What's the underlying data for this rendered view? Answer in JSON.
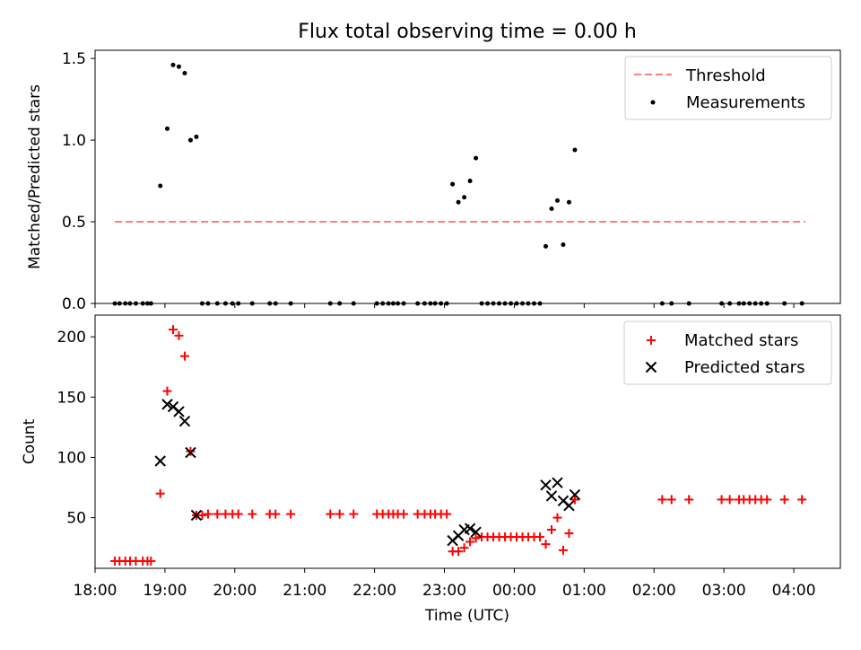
{
  "figure_title": "Flux total observing time = 0.00 h",
  "xlabel": "Time (UTC)",
  "x_tick_labels": [
    "18:00",
    "19:00",
    "20:00",
    "21:00",
    "22:00",
    "23:00",
    "00:00",
    "01:00",
    "02:00",
    "03:00",
    "04:00"
  ],
  "chart_data": [
    {
      "type": "scatter",
      "ylabel": "Matched/Predicted stars",
      "xlabel": "",
      "xlim": [
        "18:00",
        "04:40"
      ],
      "ylim": [
        0,
        1.55
      ],
      "y_ticks": [
        0,
        0.5,
        1.0,
        1.5
      ],
      "y_tick_labels": [
        "0.0",
        "0.5",
        "1.0",
        "1.5"
      ],
      "legend_position": "top-right",
      "grid": false,
      "threshold": {
        "name": "Threshold",
        "y": 0.5,
        "x_start": "18:17",
        "x_end": "04:10",
        "color": "#ff7f7f"
      },
      "series": [
        {
          "name": "Measurements",
          "color": "#000000",
          "marker": "dot",
          "points": [
            [
              "18:17",
              0
            ],
            [
              "18:21",
              0
            ],
            [
              "18:26",
              0
            ],
            [
              "18:30",
              0
            ],
            [
              "18:35",
              0
            ],
            [
              "18:41",
              0
            ],
            [
              "18:45",
              0
            ],
            [
              "18:48",
              0
            ],
            [
              "18:56",
              0.72
            ],
            [
              "19:02",
              1.07
            ],
            [
              "19:07",
              1.46
            ],
            [
              "19:12",
              1.45
            ],
            [
              "19:17",
              1.41
            ],
            [
              "19:22",
              1.0
            ],
            [
              "19:27",
              1.02
            ],
            [
              "19:32",
              0
            ],
            [
              "19:37",
              0
            ],
            [
              "19:45",
              0
            ],
            [
              "19:52",
              0
            ],
            [
              "19:58",
              0
            ],
            [
              "20:03",
              0
            ],
            [
              "20:15",
              0
            ],
            [
              "20:30",
              0
            ],
            [
              "20:35",
              0
            ],
            [
              "20:48",
              0
            ],
            [
              "21:22",
              0
            ],
            [
              "21:30",
              0
            ],
            [
              "21:42",
              0
            ],
            [
              "22:02",
              0
            ],
            [
              "22:07",
              0
            ],
            [
              "22:12",
              0
            ],
            [
              "22:16",
              0
            ],
            [
              "22:20",
              0
            ],
            [
              "22:25",
              0
            ],
            [
              "22:37",
              0
            ],
            [
              "22:43",
              0
            ],
            [
              "22:48",
              0
            ],
            [
              "22:52",
              0
            ],
            [
              "22:57",
              0
            ],
            [
              "23:02",
              0
            ],
            [
              "23:07",
              0.73
            ],
            [
              "23:12",
              0.62
            ],
            [
              "23:17",
              0.65
            ],
            [
              "23:22",
              0.75
            ],
            [
              "23:27",
              0.89
            ],
            [
              "23:32",
              0
            ],
            [
              "23:37",
              0
            ],
            [
              "23:42",
              0
            ],
            [
              "23:47",
              0
            ],
            [
              "23:52",
              0
            ],
            [
              "23:57",
              0
            ],
            [
              "00:02",
              0
            ],
            [
              "00:07",
              0
            ],
            [
              "00:12",
              0
            ],
            [
              "00:17",
              0
            ],
            [
              "00:22",
              0
            ],
            [
              "00:27",
              0.35
            ],
            [
              "00:32",
              0.58
            ],
            [
              "00:37",
              0.63
            ],
            [
              "00:42",
              0.36
            ],
            [
              "00:47",
              0.62
            ],
            [
              "00:52",
              0.94
            ],
            [
              "02:07",
              0
            ],
            [
              "02:15",
              0
            ],
            [
              "02:30",
              0
            ],
            [
              "02:58",
              0
            ],
            [
              "03:05",
              0
            ],
            [
              "03:13",
              0
            ],
            [
              "03:17",
              0
            ],
            [
              "03:22",
              0
            ],
            [
              "03:27",
              0
            ],
            [
              "03:32",
              0
            ],
            [
              "03:37",
              0
            ],
            [
              "03:52",
              0
            ],
            [
              "04:07",
              0
            ]
          ]
        }
      ]
    },
    {
      "type": "scatter",
      "ylabel": "Count",
      "xlabel": "Time (UTC)",
      "xlim": [
        "18:00",
        "04:40"
      ],
      "ylim": [
        8,
        218
      ],
      "y_ticks": [
        50,
        100,
        150,
        200
      ],
      "y_tick_labels": [
        "50",
        "100",
        "150",
        "200"
      ],
      "legend_position": "top-right",
      "grid": false,
      "series": [
        {
          "name": "Matched stars",
          "color": "#ff0000",
          "marker": "plus",
          "points": [
            [
              "18:17",
              14
            ],
            [
              "18:21",
              14
            ],
            [
              "18:26",
              14
            ],
            [
              "18:30",
              14
            ],
            [
              "18:35",
              14
            ],
            [
              "18:41",
              14
            ],
            [
              "18:45",
              14
            ],
            [
              "18:48",
              14
            ],
            [
              "18:56",
              70
            ],
            [
              "19:02",
              155
            ],
            [
              "19:07",
              206
            ],
            [
              "19:12",
              201
            ],
            [
              "19:17",
              184
            ],
            [
              "19:22",
              105
            ],
            [
              "19:27",
              52
            ],
            [
              "19:32",
              52
            ],
            [
              "19:37",
              53
            ],
            [
              "19:45",
              53
            ],
            [
              "19:52",
              53
            ],
            [
              "19:58",
              53
            ],
            [
              "20:03",
              53
            ],
            [
              "20:15",
              53
            ],
            [
              "20:30",
              53
            ],
            [
              "20:35",
              53
            ],
            [
              "20:48",
              53
            ],
            [
              "21:22",
              53
            ],
            [
              "21:30",
              53
            ],
            [
              "21:42",
              53
            ],
            [
              "22:02",
              53
            ],
            [
              "22:07",
              53
            ],
            [
              "22:12",
              53
            ],
            [
              "22:16",
              53
            ],
            [
              "22:20",
              53
            ],
            [
              "22:25",
              53
            ],
            [
              "22:37",
              53
            ],
            [
              "22:43",
              53
            ],
            [
              "22:48",
              53
            ],
            [
              "22:52",
              53
            ],
            [
              "22:57",
              53
            ],
            [
              "23:02",
              53
            ],
            [
              "23:07",
              22
            ],
            [
              "23:12",
              22
            ],
            [
              "23:17",
              25
            ],
            [
              "23:22",
              30
            ],
            [
              "23:27",
              33
            ],
            [
              "23:32",
              34
            ],
            [
              "23:37",
              34
            ],
            [
              "23:42",
              34
            ],
            [
              "23:47",
              34
            ],
            [
              "23:52",
              34
            ],
            [
              "23:57",
              34
            ],
            [
              "00:02",
              34
            ],
            [
              "00:07",
              34
            ],
            [
              "00:12",
              34
            ],
            [
              "00:17",
              34
            ],
            [
              "00:22",
              34
            ],
            [
              "00:27",
              28
            ],
            [
              "00:32",
              40
            ],
            [
              "00:37",
              50
            ],
            [
              "00:42",
              23
            ],
            [
              "00:47",
              37
            ],
            [
              "00:52",
              65
            ],
            [
              "02:07",
              65
            ],
            [
              "02:15",
              65
            ],
            [
              "02:30",
              65
            ],
            [
              "02:58",
              65
            ],
            [
              "03:05",
              65
            ],
            [
              "03:13",
              65
            ],
            [
              "03:17",
              65
            ],
            [
              "03:22",
              65
            ],
            [
              "03:27",
              65
            ],
            [
              "03:32",
              65
            ],
            [
              "03:37",
              65
            ],
            [
              "03:52",
              65
            ],
            [
              "04:07",
              65
            ]
          ]
        },
        {
          "name": "Predicted stars",
          "color": "#000000",
          "marker": "x",
          "points": [
            [
              "18:56",
              97
            ],
            [
              "19:02",
              144
            ],
            [
              "19:07",
              142
            ],
            [
              "19:12",
              138
            ],
            [
              "19:17",
              130
            ],
            [
              "19:22",
              104
            ],
            [
              "19:27",
              52
            ],
            [
              "23:07",
              31
            ],
            [
              "23:12",
              35
            ],
            [
              "23:17",
              40
            ],
            [
              "23:22",
              41
            ],
            [
              "23:27",
              38
            ],
            [
              "00:27",
              77
            ],
            [
              "00:32",
              68
            ],
            [
              "00:37",
              79
            ],
            [
              "00:42",
              64
            ],
            [
              "00:47",
              60
            ],
            [
              "00:52",
              69
            ]
          ]
        }
      ]
    }
  ]
}
